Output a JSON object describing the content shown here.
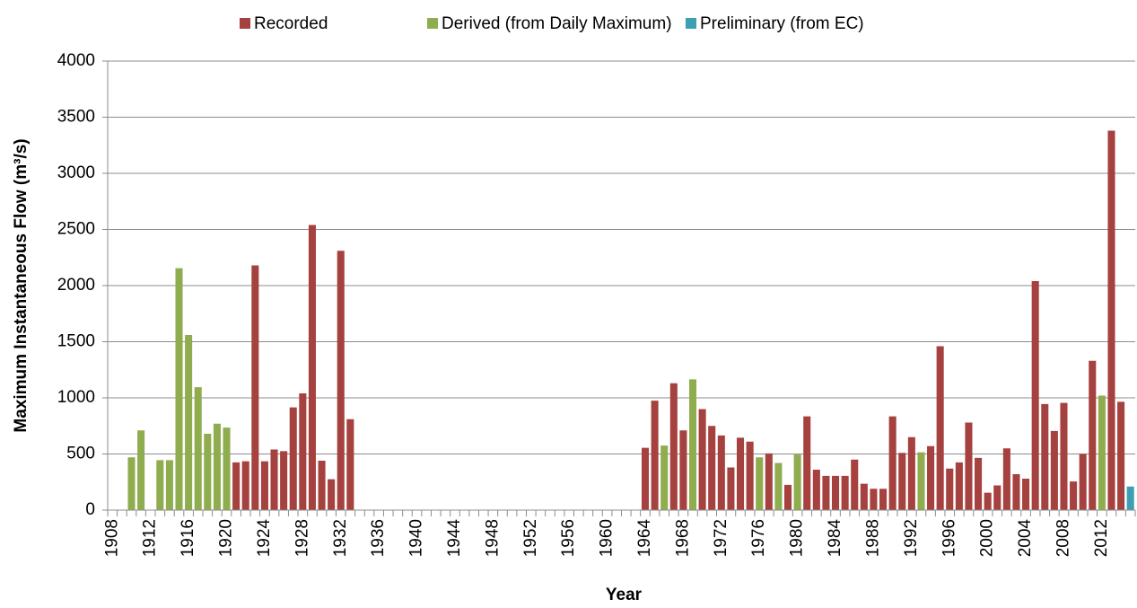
{
  "chart_data": {
    "type": "bar",
    "x_label": "Year",
    "y_label": "Maximum Instantaneous Flow (m³/s)",
    "legend": "top",
    "grid": true,
    "ylim": [
      0,
      4000
    ],
    "yticks": [
      0,
      500,
      1000,
      1500,
      2000,
      2500,
      3000,
      3500,
      4000
    ],
    "categories": [
      "1908",
      null,
      null,
      null,
      "1912",
      null,
      null,
      null,
      "1916",
      null,
      null,
      null,
      "1920",
      null,
      null,
      null,
      "1924",
      null,
      null,
      null,
      "1928",
      null,
      null,
      null,
      "1932",
      null,
      null,
      null,
      "1936",
      null,
      null,
      null,
      "1940",
      null,
      null,
      null,
      "1944",
      null,
      null,
      null,
      "1948",
      null,
      null,
      null,
      "1952",
      null,
      null,
      null,
      "1956",
      null,
      null,
      null,
      "1960",
      null,
      null,
      null,
      "1964",
      null,
      null,
      null,
      "1968",
      null,
      null,
      null,
      "1972",
      null,
      null,
      null,
      "1976",
      null,
      null,
      null,
      "1980",
      null,
      null,
      null,
      "1984",
      null,
      null,
      null,
      "1988",
      null,
      null,
      null,
      "1992",
      null,
      null,
      null,
      "1996",
      null,
      null,
      null,
      "2000",
      null,
      null,
      null,
      "2004",
      null,
      null,
      null,
      "2008",
      null,
      null,
      null,
      "2012",
      null,
      null,
      null
    ],
    "series": [
      {
        "name": "Recorded",
        "color": "#a5413f",
        "values": [
          null,
          null,
          null,
          null,
          null,
          null,
          null,
          null,
          null,
          null,
          null,
          null,
          null,
          425,
          435,
          2180,
          435,
          540,
          525,
          915,
          1040,
          2540,
          440,
          275,
          2310,
          810,
          null,
          null,
          null,
          null,
          null,
          null,
          null,
          null,
          null,
          null,
          null,
          null,
          null,
          null,
          null,
          null,
          null,
          null,
          null,
          null,
          null,
          null,
          null,
          null,
          null,
          null,
          null,
          null,
          null,
          null,
          555,
          975,
          null,
          1130,
          710,
          null,
          900,
          750,
          665,
          380,
          645,
          610,
          null,
          505,
          null,
          225,
          null,
          835,
          360,
          305,
          305,
          305,
          450,
          235,
          190,
          190,
          835,
          510,
          650,
          null,
          570,
          1460,
          370,
          425,
          780,
          465,
          155,
          220,
          550,
          320,
          280,
          2040,
          945,
          705,
          955,
          255,
          500,
          1330,
          null,
          3380,
          965,
          null
        ]
      },
      {
        "name": "Derived (from Daily Maximum)",
        "color": "#8fad4f",
        "values": [
          null,
          null,
          470,
          710,
          null,
          445,
          445,
          2155,
          1560,
          1095,
          680,
          770,
          735,
          null,
          null,
          null,
          null,
          null,
          null,
          null,
          null,
          null,
          null,
          null,
          null,
          null,
          null,
          null,
          null,
          null,
          null,
          null,
          null,
          null,
          null,
          null,
          null,
          null,
          null,
          null,
          null,
          null,
          null,
          null,
          null,
          null,
          null,
          null,
          null,
          null,
          null,
          null,
          null,
          null,
          null,
          null,
          null,
          null,
          575,
          null,
          null,
          1165,
          null,
          null,
          null,
          null,
          null,
          null,
          470,
          null,
          420,
          null,
          495,
          null,
          null,
          null,
          null,
          null,
          null,
          null,
          null,
          null,
          null,
          null,
          null,
          515,
          null,
          null,
          null,
          null,
          null,
          null,
          null,
          null,
          null,
          null,
          null,
          null,
          null,
          null,
          null,
          null,
          null,
          null,
          1020,
          null,
          null,
          null
        ]
      },
      {
        "name": "Preliminary (from EC)",
        "color": "#3c9fb3",
        "values": [
          null,
          null,
          null,
          null,
          null,
          null,
          null,
          null,
          null,
          null,
          null,
          null,
          null,
          null,
          null,
          null,
          null,
          null,
          null,
          null,
          null,
          null,
          null,
          null,
          null,
          null,
          null,
          null,
          null,
          null,
          null,
          null,
          null,
          null,
          null,
          null,
          null,
          null,
          null,
          null,
          null,
          null,
          null,
          null,
          null,
          null,
          null,
          null,
          null,
          null,
          null,
          null,
          null,
          null,
          null,
          null,
          null,
          null,
          null,
          null,
          null,
          null,
          null,
          null,
          null,
          null,
          null,
          null,
          null,
          null,
          null,
          null,
          null,
          null,
          null,
          null,
          null,
          null,
          null,
          null,
          null,
          null,
          null,
          null,
          null,
          null,
          null,
          null,
          null,
          null,
          null,
          null,
          null,
          null,
          null,
          null,
          null,
          null,
          null,
          null,
          null,
          null,
          null,
          null,
          null,
          null,
          null,
          210
        ]
      }
    ]
  }
}
